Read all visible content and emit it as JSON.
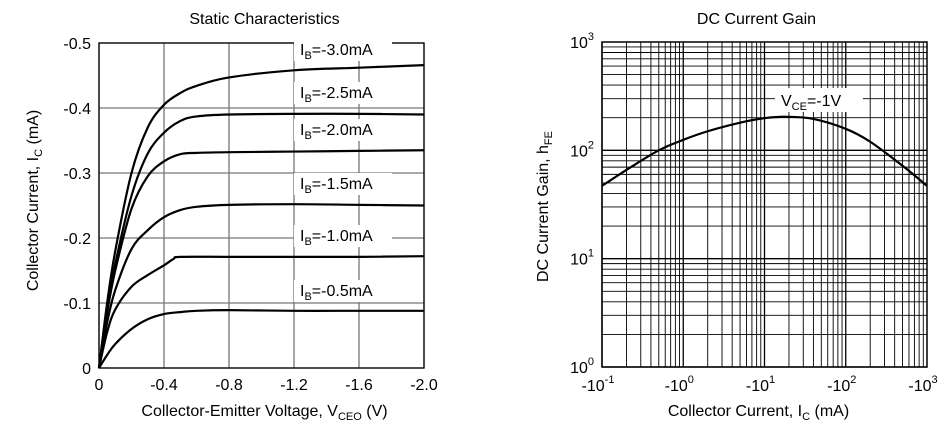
{
  "chart_data": [
    {
      "type": "line",
      "title": "Static Characteristics",
      "xlabel": {
        "base": "Collector-Emitter Voltage, V",
        "sub": "CEO",
        "rest": " (V)"
      },
      "ylabel": {
        "base": "Collector Current, I",
        "sub": "C",
        "rest": " (mA)"
      },
      "xlim": [
        0,
        -2.0
      ],
      "ylim": [
        0,
        -0.5
      ],
      "xticks": [
        0,
        -0.4,
        -0.8,
        -1.2,
        -1.6,
        -2.0
      ],
      "xtick_labels": [
        "0",
        "-0.4",
        "-0.8",
        "-1.2",
        "-1.6",
        "-2.0"
      ],
      "yticks": [
        0,
        -0.1,
        -0.2,
        -0.3,
        -0.4,
        -0.5
      ],
      "ytick_labels": [
        "0",
        "-0.1",
        "-0.2",
        "-0.3",
        "-0.4",
        "-0.5"
      ],
      "grid": true,
      "series": [
        {
          "name": {
            "base": "I",
            "sub": "B",
            "rest": "=-3.0mA"
          },
          "x": [
            0,
            -0.05,
            -0.1,
            -0.2,
            -0.3,
            -0.4,
            -0.5,
            -0.6,
            -0.8,
            -1.2,
            -1.6,
            -2.0
          ],
          "y": [
            0,
            -0.1,
            -0.18,
            -0.3,
            -0.37,
            -0.405,
            -0.423,
            -0.434,
            -0.447,
            -0.458,
            -0.462,
            -0.466
          ]
        },
        {
          "name": {
            "base": "I",
            "sub": "B",
            "rest": "=-2.5mA"
          },
          "x": [
            0,
            -0.05,
            -0.1,
            -0.2,
            -0.3,
            -0.4,
            -0.5,
            -0.6,
            -0.8,
            -1.2,
            -1.6,
            -2.0
          ],
          "y": [
            0,
            -0.09,
            -0.16,
            -0.265,
            -0.33,
            -0.362,
            -0.38,
            -0.387,
            -0.39,
            -0.391,
            -0.391,
            -0.39
          ]
        },
        {
          "name": {
            "base": "I",
            "sub": "B",
            "rest": "=-2.0mA"
          },
          "x": [
            0,
            -0.05,
            -0.1,
            -0.2,
            -0.3,
            -0.4,
            -0.5,
            -0.6,
            -0.8,
            -1.2,
            -1.6,
            -2.0
          ],
          "y": [
            0,
            -0.085,
            -0.15,
            -0.245,
            -0.295,
            -0.318,
            -0.329,
            -0.331,
            -0.332,
            -0.333,
            -0.334,
            -0.335
          ]
        },
        {
          "name": {
            "base": "I",
            "sub": "B",
            "rest": "=-1.5mA"
          },
          "x": [
            0,
            -0.05,
            -0.1,
            -0.2,
            -0.3,
            -0.4,
            -0.5,
            -0.6,
            -0.8,
            -1.2,
            -1.6,
            -2.0
          ],
          "y": [
            0,
            -0.07,
            -0.12,
            -0.183,
            -0.212,
            -0.232,
            -0.243,
            -0.248,
            -0.251,
            -0.252,
            -0.251,
            -0.25
          ]
        },
        {
          "name": {
            "base": "I",
            "sub": "B",
            "rest": "=-1.0mA"
          },
          "x": [
            0,
            -0.05,
            -0.1,
            -0.2,
            -0.3,
            -0.4,
            -0.46,
            -0.5,
            -0.8,
            -1.2,
            -1.6,
            -2.0
          ],
          "y": [
            0,
            -0.055,
            -0.09,
            -0.125,
            -0.143,
            -0.158,
            -0.168,
            -0.171,
            -0.171,
            -0.171,
            -0.171,
            -0.172
          ]
        },
        {
          "name": {
            "base": "I",
            "sub": "B",
            "rest": "=-0.5mA"
          },
          "x": [
            0,
            -0.05,
            -0.1,
            -0.2,
            -0.3,
            -0.4,
            -0.5,
            -0.6,
            -0.8,
            -1.2,
            -1.6,
            -2.0
          ],
          "y": [
            0,
            -0.02,
            -0.037,
            -0.06,
            -0.075,
            -0.083,
            -0.086,
            -0.088,
            -0.089,
            -0.088,
            -0.088,
            -0.088
          ]
        }
      ]
    },
    {
      "type": "line",
      "title": "DC Current Gain",
      "xlabel": {
        "base": "Collector Current, I",
        "sub": "C",
        "rest": " (mA)"
      },
      "ylabel": {
        "base": "DC Current Gain, h",
        "sub": "FE",
        "rest": ""
      },
      "xscale": "log",
      "yscale": "log",
      "xlim": [
        -0.1,
        -1000
      ],
      "ylim": [
        1,
        1000
      ],
      "xtick_labels": [
        {
          "base": "-10",
          "exp": "-1"
        },
        {
          "base": "-10",
          "exp": "0"
        },
        {
          "base": "-10",
          "exp": "1"
        },
        {
          "base": "-10",
          "exp": "2"
        },
        {
          "base": "-10",
          "exp": "3"
        }
      ],
      "ytick_labels": [
        {
          "base": "10",
          "exp": "0"
        },
        {
          "base": "10",
          "exp": "1"
        },
        {
          "base": "10",
          "exp": "2"
        },
        {
          "base": "10",
          "exp": "3"
        }
      ],
      "grid": true,
      "series": [
        {
          "name": {
            "base": "V",
            "sub": "CE",
            "rest": "=-1V"
          },
          "x": [
            -0.1,
            -0.2,
            -0.5,
            -1,
            -2,
            -5,
            -10,
            -19,
            -40,
            -100,
            -200,
            -500,
            -1000
          ],
          "y": [
            47,
            66,
            100,
            125,
            150,
            180,
            198,
            204,
            195,
            158,
            120,
            72,
            47
          ]
        }
      ]
    }
  ]
}
